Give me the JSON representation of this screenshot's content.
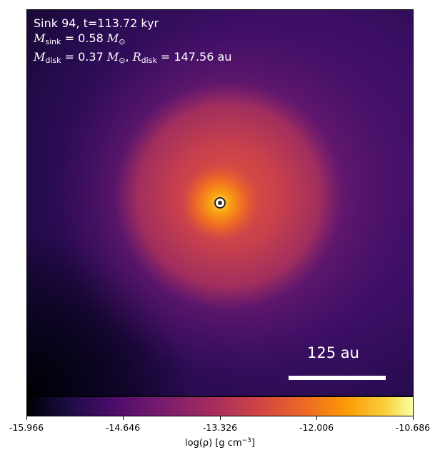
{
  "panel": {
    "title_line": "Sink 94, t=113.72 kyr",
    "sink_mass": {
      "symbol": "M",
      "subscript": "sink",
      "expr": "= 0.58",
      "unit_symbol": "M",
      "unit_subscript": "⊙"
    },
    "disk": {
      "mass_symbol": "M",
      "mass_subscript": "disk",
      "mass_expr": "= 0.37",
      "mass_unit_symbol": "M",
      "mass_unit_subscript": "⊙",
      "separator": ", ",
      "radius_symbol": "R",
      "radius_subscript": "disk",
      "radius_expr": "= 147.56 au"
    },
    "scale_bar_label": "125 au"
  },
  "colorbar": {
    "colormap": "inferno",
    "ticks": [
      "-15.966",
      "-14.646",
      "-13.326",
      "-12.006",
      "-10.686"
    ],
    "label_prefix": "log(ρ) [g cm",
    "label_exponent": "−3",
    "label_suffix": "]"
  },
  "colors": {
    "background_dark": "#1f0a45",
    "core_bright": "#f79a1a",
    "mid_orange": "#dd5a3a"
  }
}
